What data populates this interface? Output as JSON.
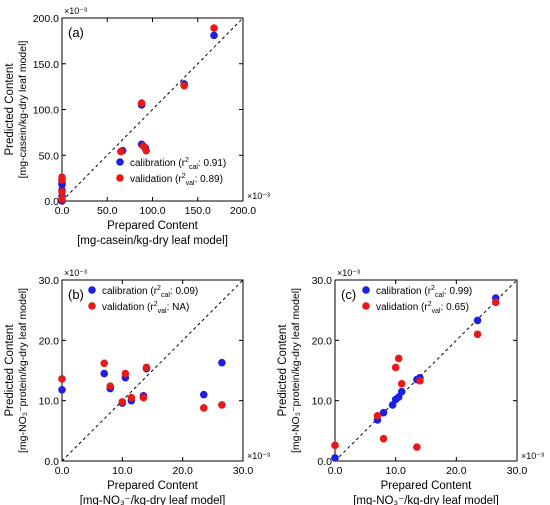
{
  "colors": {
    "calibration": "#1f1fe0",
    "validation": "#e81919",
    "axis": "#000000",
    "diagonal": "#000000"
  },
  "chart_data": [
    {
      "type": "scatter",
      "panel_label": "(a)",
      "exponent_label": "×10⁻³",
      "xlim": [
        0,
        200
      ],
      "ylim": [
        0,
        200
      ],
      "xticks": [
        "0.0",
        "50.0",
        "100.0",
        "150.0",
        "200.0"
      ],
      "yticks": [
        "0.0",
        "50.0",
        "100.0",
        "150.0",
        "200.0"
      ],
      "xlabel": [
        "Prepared Content",
        "[mg-casein/kg-dry leaf model]"
      ],
      "ylabel": [
        "Predicted Content",
        "[mg-casein/kg-dry leaf model]"
      ],
      "legend_position": "bottom-right",
      "legend": [
        {
          "key": "calibration",
          "text": "calibration (r²cal: 0.91)"
        },
        {
          "key": "validation",
          "text": "validation (r²val: 0.89)"
        }
      ],
      "series": [
        {
          "name": "calibration",
          "points": [
            [
              0,
              0
            ],
            [
              0,
              5
            ],
            [
              0,
              12
            ],
            [
              0,
              18
            ],
            [
              0,
              20
            ],
            [
              67,
              55
            ],
            [
              88,
              105
            ],
            [
              88,
              62
            ],
            [
              92,
              58
            ],
            [
              135,
              128
            ],
            [
              168,
              181
            ]
          ]
        },
        {
          "name": "validation",
          "points": [
            [
              0,
              2
            ],
            [
              0,
              10
            ],
            [
              0,
              23
            ],
            [
              0,
              26
            ],
            [
              65,
              54
            ],
            [
              88,
              107
            ],
            [
              90,
              60
            ],
            [
              93,
              55
            ],
            [
              135,
              126
            ],
            [
              168,
              189
            ]
          ]
        }
      ]
    },
    {
      "type": "scatter",
      "panel_label": "(b)",
      "exponent_label": "×10⁻³",
      "xlim": [
        0,
        30
      ],
      "ylim": [
        0,
        30
      ],
      "xticks": [
        "0.0",
        "10.0",
        "20.0",
        "30.0"
      ],
      "yticks": [
        "0.0",
        "10.0",
        "20.0",
        "30.0"
      ],
      "xlabel": [
        "Prepared Content",
        "[mg-NO₃⁻/kg-dry leaf model]"
      ],
      "ylabel": [
        "Predicted Content",
        "[mg-NO₃⁻protein/kg-dry leaf model]"
      ],
      "legend_position": "top-left",
      "legend": [
        {
          "key": "calibration",
          "text": "calibration (r²cal: 0.09)"
        },
        {
          "key": "validation",
          "text": "validation (r²val: NA)"
        }
      ],
      "series": [
        {
          "name": "calibration",
          "points": [
            [
              0,
              11.8
            ],
            [
              7,
              14.5
            ],
            [
              8,
              12
            ],
            [
              10,
              9.6
            ],
            [
              10.5,
              13.8
            ],
            [
              11.5,
              10
            ],
            [
              13.5,
              10.8
            ],
            [
              14,
              15.3
            ],
            [
              23.5,
              11
            ],
            [
              26.5,
              16.3
            ]
          ]
        },
        {
          "name": "validation",
          "points": [
            [
              0,
              13.6
            ],
            [
              7,
              16.2
            ],
            [
              8,
              12.4
            ],
            [
              10,
              9.8
            ],
            [
              10.5,
              14.5
            ],
            [
              11.5,
              10.5
            ],
            [
              13.5,
              10.5
            ],
            [
              14,
              15.5
            ],
            [
              23.5,
              8.8
            ],
            [
              26.5,
              9.3
            ]
          ]
        }
      ]
    },
    {
      "type": "scatter",
      "panel_label": "(c)",
      "exponent_label": "×10⁻³",
      "xlim": [
        0,
        30
      ],
      "ylim": [
        0,
        30
      ],
      "xticks": [
        "0.0",
        "10.0",
        "20.0",
        "30.0"
      ],
      "yticks": [
        "0.0",
        "10.0",
        "20.0",
        "30.0"
      ],
      "xlabel": [
        "Prepared Content",
        "[mg-NO₃⁻/kg-dry leaf model]"
      ],
      "ylabel": [
        "Predicted Content",
        "[mg-NO₃⁻protein/kg-dry leaf model]"
      ],
      "legend_position": "top-left",
      "legend": [
        {
          "key": "calibration",
          "text": "calibration (r²cal: 0.99)"
        },
        {
          "key": "validation",
          "text": "validation (r²val: 0.65)"
        }
      ],
      "series": [
        {
          "name": "calibration",
          "points": [
            [
              0,
              0.5
            ],
            [
              7,
              6.8
            ],
            [
              8,
              8
            ],
            [
              9.5,
              9.3
            ],
            [
              10,
              10.2
            ],
            [
              10.5,
              10.6
            ],
            [
              11,
              11.5
            ],
            [
              13.5,
              13.5
            ],
            [
              14,
              13.8
            ],
            [
              23.5,
              23.3
            ],
            [
              26.5,
              27
            ]
          ]
        },
        {
          "name": "validation",
          "points": [
            [
              0,
              2.6
            ],
            [
              7,
              7.5
            ],
            [
              8,
              3.7
            ],
            [
              10,
              15.5
            ],
            [
              10.5,
              17
            ],
            [
              11,
              12.8
            ],
            [
              13.5,
              2.3
            ],
            [
              14,
              13.3
            ],
            [
              23.5,
              21
            ],
            [
              26.5,
              26.3
            ]
          ]
        }
      ]
    }
  ]
}
